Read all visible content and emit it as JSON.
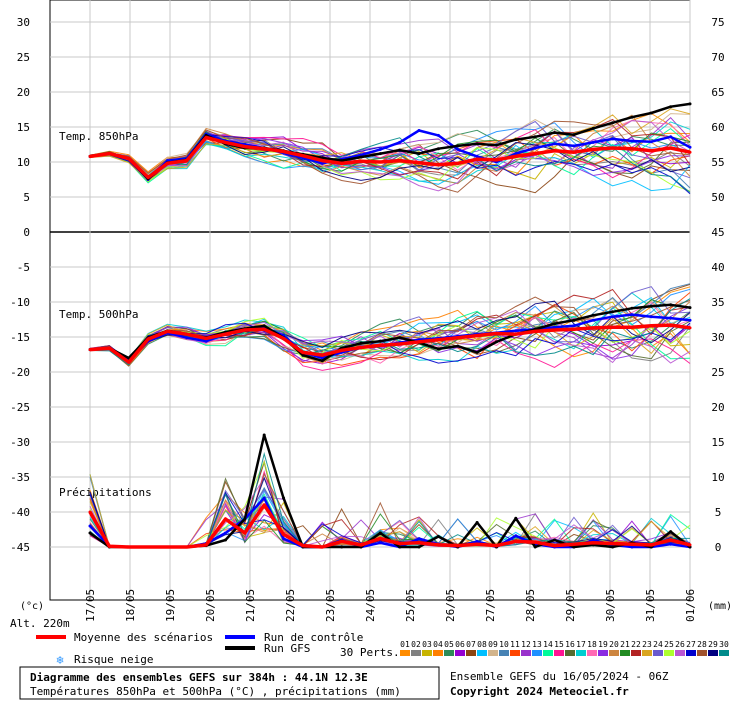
{
  "chart_data": {
    "type": "line",
    "dates": [
      "17/05",
      "18/05",
      "19/05",
      "20/05",
      "21/05",
      "22/05",
      "23/05",
      "24/05",
      "25/05",
      "26/05",
      "27/05",
      "28/05",
      "29/05",
      "30/05",
      "31/05",
      "01/06"
    ],
    "left_axis": {
      "unit": "(°c)",
      "ticks": [
        "30",
        "25",
        "20",
        "15",
        "10",
        "5",
        "0",
        "-5",
        "-10",
        "-15",
        "-20",
        "-25",
        "-30",
        "-35",
        "-40",
        "-45"
      ]
    },
    "right_axis": {
      "unit": "(mm)",
      "ticks_upper": [
        "75",
        "70",
        "65",
        "60",
        "55",
        "50",
        "45"
      ],
      "ticks_lower": [
        "40",
        "35",
        "30",
        "25",
        "20",
        "15",
        "10",
        "5",
        "0"
      ]
    },
    "altitude_label": "Alt. 220m",
    "panels": {
      "t850": {
        "label": "Temp. 850hPa",
        "ylim": [
          0,
          30
        ],
        "mean": [
          10.8,
          11.2,
          10.5,
          7.8,
          9.8,
          10.2,
          13.5,
          12.8,
          12.2,
          11.9,
          11.5,
          10.9,
          10.2,
          9.8,
          10.1,
          10.0,
          10.2,
          9.9,
          9.6,
          9.8,
          10.4,
          10.3,
          10.8,
          11.2,
          11.6,
          11.4,
          11.8,
          12.0,
          11.9,
          11.6,
          12.0,
          11.4
        ],
        "control": [
          10.8,
          11.2,
          10.5,
          7.5,
          10.2,
          10.5,
          14.0,
          13.0,
          12.5,
          12.0,
          11.3,
          10.6,
          9.8,
          10.4,
          11.0,
          11.8,
          12.8,
          14.5,
          13.8,
          11.8,
          10.8,
          10.0,
          11.2,
          12.0,
          12.6,
          12.3,
          12.8,
          13.3,
          13.0,
          12.9,
          13.6,
          12.1
        ],
        "gfs": [
          10.8,
          11.2,
          10.5,
          7.6,
          9.9,
          10.3,
          13.8,
          12.6,
          12.0,
          12.0,
          11.6,
          11.1,
          10.6,
          10.2,
          10.7,
          11.2,
          11.7,
          11.2,
          11.9,
          12.3,
          12.6,
          12.4,
          13.2,
          13.6,
          14.2,
          13.9,
          14.8,
          15.6,
          16.4,
          17.0,
          17.9,
          18.3
        ]
      },
      "t500": {
        "label": "Temp. 500hPa",
        "ylim": [
          -45,
          0
        ],
        "mean": [
          -16.8,
          -16.6,
          -18.6,
          -15.3,
          -14.2,
          -14.6,
          -15.2,
          -14.6,
          -14.0,
          -13.9,
          -15.2,
          -17.2,
          -17.6,
          -16.9,
          -16.5,
          -16.2,
          -16.0,
          -15.7,
          -15.4,
          -15.1,
          -14.8,
          -14.5,
          -14.6,
          -14.2,
          -14.0,
          -13.9,
          -13.7,
          -13.6,
          -13.6,
          -13.4,
          -13.3,
          -13.7
        ],
        "control": [
          -16.8,
          -16.6,
          -18.4,
          -15.6,
          -14.4,
          -15.1,
          -15.6,
          -14.6,
          -14.0,
          -13.6,
          -14.8,
          -17.2,
          -18.0,
          -17.2,
          -16.5,
          -16.3,
          -15.8,
          -15.4,
          -15.2,
          -14.9,
          -14.6,
          -14.4,
          -14.1,
          -13.9,
          -13.6,
          -13.4,
          -12.6,
          -12.1,
          -11.8,
          -12.1,
          -12.3,
          -12.6
        ],
        "gfs": [
          -16.8,
          -16.6,
          -18.0,
          -15.1,
          -14.1,
          -14.6,
          -15.1,
          -14.3,
          -13.8,
          -13.4,
          -15.1,
          -17.6,
          -18.4,
          -16.6,
          -15.9,
          -15.6,
          -15.1,
          -15.8,
          -16.7,
          -16.3,
          -17.2,
          -15.7,
          -14.6,
          -13.9,
          -13.1,
          -12.6,
          -11.9,
          -11.4,
          -10.9,
          -10.6,
          -10.4,
          -10.8
        ]
      },
      "precip": {
        "label": "Précipitations",
        "ylim": [
          0,
          40
        ],
        "mean": [
          5,
          0.1,
          0,
          0,
          0,
          0,
          0.3,
          4,
          2,
          6,
          1.8,
          0.2,
          0,
          0.8,
          0.3,
          1.2,
          0.5,
          0.6,
          0.3,
          0.2,
          0.4,
          0.2,
          0.8,
          0.7,
          0.2,
          0.4,
          0.6,
          0.5,
          0.4,
          0.3,
          1.0,
          0.3
        ],
        "control": [
          3,
          0.1,
          0,
          0,
          0,
          0,
          0.5,
          2,
          4,
          7,
          1.2,
          0,
          0,
          1.0,
          0,
          0.6,
          0,
          1.2,
          0.4,
          0,
          0.8,
          0,
          1.6,
          0.4,
          0,
          0,
          1.0,
          0.3,
          0,
          0,
          0.4,
          0
        ],
        "gfs": [
          2,
          0,
          0,
          0,
          0,
          0,
          0.2,
          1,
          4,
          16,
          7,
          0,
          0,
          0,
          0,
          2.0,
          0,
          0,
          1.5,
          0,
          3.5,
          0,
          4.1,
          0,
          1.0,
          0,
          0.3,
          0,
          0.6,
          0,
          2.2,
          0
        ]
      }
    },
    "perturbation_colors": [
      "#ff8c00",
      "#808080",
      "#c8b400",
      "#ff7f00",
      "#2e8b57",
      "#9400d3",
      "#8b4513",
      "#00bfff",
      "#d2b48c",
      "#4682b4",
      "#ff4500",
      "#9932cc",
      "#1e90ff",
      "#00fa9a",
      "#ff1493",
      "#556b2f",
      "#00ced1",
      "#ff69b4",
      "#8a2be2",
      "#cd853f",
      "#228b22",
      "#b22222",
      "#daa520",
      "#6a5acd",
      "#adff2f",
      "#ba55d3",
      "#0000cd",
      "#a0522d",
      "#000080",
      "#008b8b"
    ],
    "series_colors": {
      "mean": "#ff0000",
      "control": "#0000ff",
      "gfs": "#000000"
    },
    "legend": {
      "mean": "Moyenne des scénarios",
      "control": "Run de contrôle",
      "gfs": "Run GFS",
      "snow": "Risque neige",
      "perts": "30 Perts.",
      "pert_numbers": [
        "01",
        "02",
        "03",
        "04",
        "05",
        "06",
        "07",
        "08",
        "09",
        "10",
        "11",
        "12",
        "13",
        "14",
        "15",
        "16",
        "17",
        "18",
        "19",
        "20",
        "21",
        "22",
        "23",
        "24",
        "25",
        "26",
        "27",
        "28",
        "29",
        "30"
      ]
    },
    "footer": {
      "title": "Diagramme des ensembles GEFS sur 384h : 44.1N 12.3E",
      "subtitle": "Températures 850hPa et 500hPa (°C) , précipitations (mm)",
      "run": "Ensemble GEFS du 16/05/2024 - 06Z",
      "copyright": "Copyright 2024 Meteociel.fr"
    }
  }
}
